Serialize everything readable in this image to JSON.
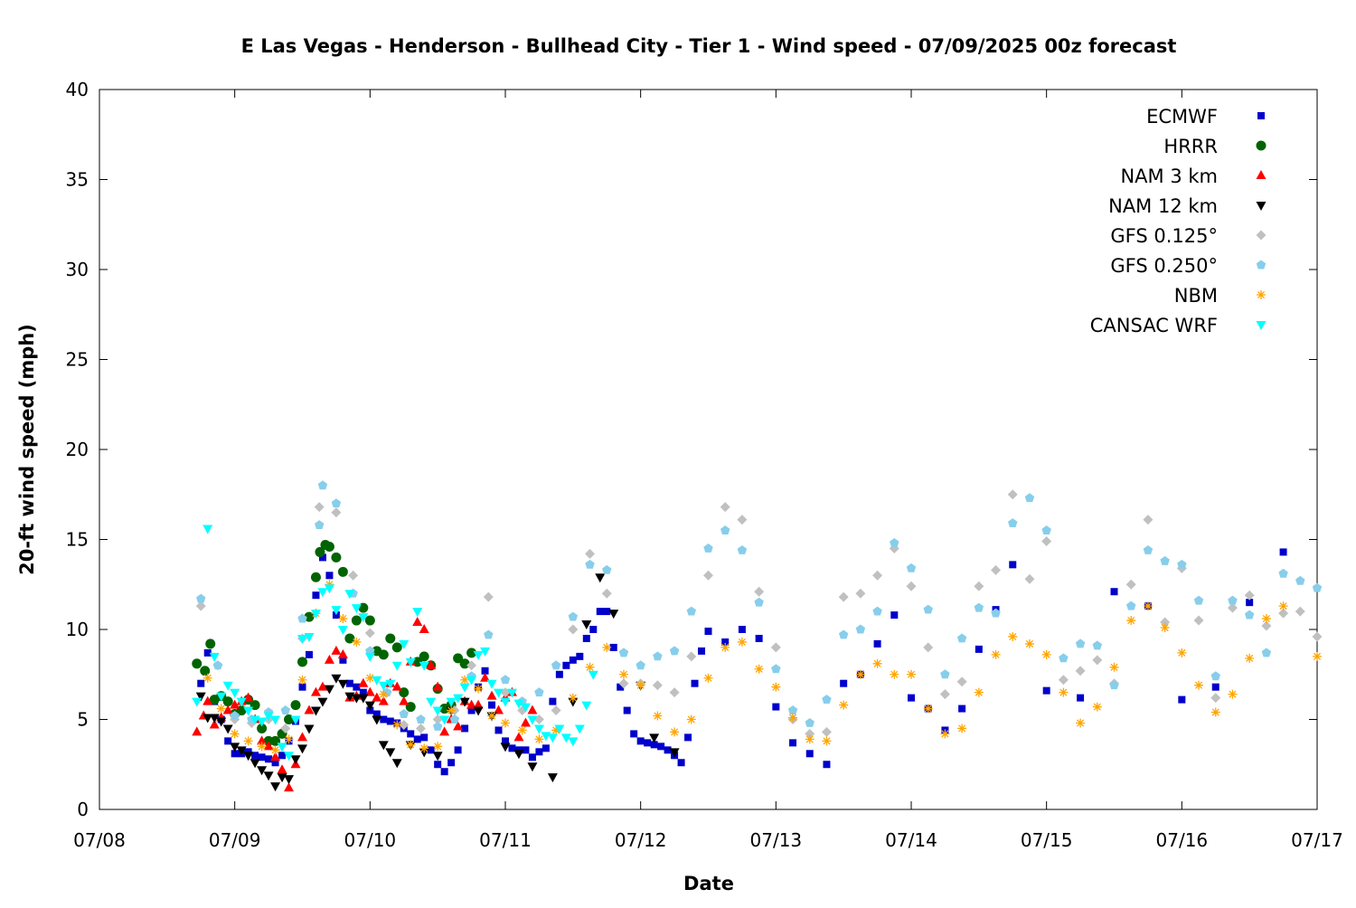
{
  "chart_data": {
    "type": "scatter",
    "title": "E Las Vegas - Henderson - Bullhead City - Tier 1 - Wind speed - 07/09/2025 00z forecast",
    "x_label": "Date",
    "y_label": "20-ft wind speed (mph)",
    "xlim": [
      8,
      17
    ],
    "xticks": [
      {
        "value": 8,
        "label": "07/08"
      },
      {
        "value": 9,
        "label": "07/09"
      },
      {
        "value": 10,
        "label": "07/10"
      },
      {
        "value": 11,
        "label": "07/11"
      },
      {
        "value": 12,
        "label": "07/12"
      },
      {
        "value": 13,
        "label": "07/13"
      },
      {
        "value": 14,
        "label": "07/14"
      },
      {
        "value": 15,
        "label": "07/15"
      },
      {
        "value": 16,
        "label": "07/16"
      },
      {
        "value": 17,
        "label": "07/17"
      }
    ],
    "ylim": [
      0,
      40
    ],
    "yticks": [
      0,
      5,
      10,
      15,
      20,
      25,
      30,
      35,
      40
    ],
    "grid": false,
    "legend": "top-right",
    "series": [
      {
        "name": "ECMWF",
        "color": "#0000cc",
        "marker": "square",
        "x": [
          8.75,
          8.8,
          8.85,
          8.9,
          8.95,
          9.0,
          9.05,
          9.1,
          9.15,
          9.2,
          9.25,
          9.3,
          9.35,
          9.4,
          9.45,
          9.5,
          9.55,
          9.6,
          9.65,
          9.7,
          9.75,
          9.8,
          9.85,
          9.9,
          9.95,
          10.0,
          10.05,
          10.1,
          10.15,
          10.2,
          10.25,
          10.3,
          10.35,
          10.4,
          10.45,
          10.5,
          10.55,
          10.6,
          10.65,
          10.7,
          10.75,
          10.8,
          10.85,
          10.9,
          10.95,
          11.0,
          11.05,
          11.1,
          11.15,
          11.2,
          11.25,
          11.3,
          11.35,
          11.4,
          11.45,
          11.5,
          11.55,
          11.6,
          11.65,
          11.7,
          11.75,
          11.8,
          11.85,
          11.9,
          11.95,
          12.0,
          12.05,
          12.1,
          12.15,
          12.2,
          12.25,
          12.3,
          12.35,
          12.4,
          12.45,
          12.5,
          12.625,
          12.75,
          12.875,
          13.0,
          13.125,
          13.25,
          13.375,
          13.5,
          13.625,
          13.75,
          13.875,
          14.0,
          14.125,
          14.25,
          14.375,
          14.5,
          14.625,
          14.75,
          15.0,
          15.25,
          15.5,
          15.75,
          16.0,
          16.25,
          16.5,
          16.75
        ],
        "values": [
          7.0,
          8.7,
          6.0,
          5.0,
          3.8,
          3.1,
          3.1,
          3.2,
          3.0,
          2.9,
          2.8,
          2.6,
          3.0,
          3.8,
          4.9,
          6.8,
          8.6,
          11.9,
          14.0,
          13.0,
          10.8,
          8.3,
          7.0,
          6.8,
          6.5,
          5.5,
          5.3,
          5.0,
          4.9,
          4.8,
          4.5,
          4.2,
          3.9,
          4.0,
          3.3,
          2.5,
          2.1,
          2.6,
          3.3,
          4.5,
          5.5,
          6.8,
          7.7,
          5.8,
          4.4,
          3.8,
          3.4,
          3.3,
          3.3,
          2.9,
          3.2,
          3.4,
          6.0,
          7.5,
          8.0,
          8.3,
          8.5,
          9.5,
          10.0,
          11.0,
          11.0,
          9.0,
          6.8,
          5.5,
          4.2,
          3.8,
          3.7,
          3.6,
          3.5,
          3.3,
          3.0,
          2.6,
          4.0,
          7.0,
          8.8,
          9.9,
          9.3,
          10.0,
          9.5,
          5.7,
          3.7,
          3.1,
          2.5,
          7.0,
          7.5,
          9.2,
          10.8,
          6.2,
          5.6,
          4.4,
          5.6,
          8.9,
          11.1,
          13.6,
          6.6,
          6.2,
          12.1,
          11.3,
          6.1,
          6.8,
          11.5,
          14.3
        ]
      },
      {
        "name": "HRRR",
        "color": "#006400",
        "marker": "circle",
        "x": [
          8.72,
          8.78,
          8.82,
          8.85,
          8.9,
          8.95,
          9.0,
          9.05,
          9.1,
          9.15,
          9.2,
          9.25,
          9.3,
          9.35,
          9.4,
          9.45,
          9.5,
          9.55,
          9.6,
          9.63,
          9.67,
          9.7,
          9.75,
          9.8,
          9.85,
          9.9,
          9.95,
          10.0,
          10.05,
          10.1,
          10.15,
          10.2,
          10.25,
          10.3,
          10.35,
          10.4,
          10.45,
          10.5,
          10.55,
          10.6,
          10.65,
          10.7,
          10.75
        ],
        "values": [
          8.1,
          7.7,
          9.2,
          6.1,
          6.3,
          6.0,
          5.3,
          5.5,
          6.1,
          5.8,
          4.5,
          3.8,
          3.8,
          4.2,
          5.0,
          5.8,
          8.2,
          10.7,
          12.9,
          14.3,
          14.7,
          14.6,
          14.0,
          13.2,
          9.5,
          10.5,
          11.2,
          10.5,
          8.8,
          8.6,
          9.5,
          9.0,
          6.5,
          5.7,
          8.2,
          8.5,
          8.0,
          6.7,
          5.6,
          5.8,
          8.4,
          8.1,
          8.7
        ]
      },
      {
        "name": "NAM 3 km",
        "color": "#ff0000",
        "marker": "triangle-up",
        "x": [
          8.72,
          8.77,
          8.8,
          8.85,
          8.9,
          8.95,
          9.0,
          9.05,
          9.1,
          9.15,
          9.2,
          9.25,
          9.3,
          9.35,
          9.4,
          9.45,
          9.5,
          9.55,
          9.6,
          9.65,
          9.7,
          9.75,
          9.8,
          9.85,
          9.9,
          9.95,
          10.0,
          10.05,
          10.1,
          10.15,
          10.2,
          10.25,
          10.3,
          10.35,
          10.4,
          10.45,
          10.5,
          10.55,
          10.6,
          10.65,
          10.7,
          10.75,
          10.8,
          10.85,
          10.9,
          10.95,
          11.0,
          11.05,
          11.1,
          11.15,
          11.2
        ],
        "values": [
          4.3,
          5.2,
          6.0,
          4.7,
          5.1,
          5.5,
          5.8,
          6.0,
          6.2,
          5.0,
          3.8,
          3.5,
          2.9,
          2.2,
          1.2,
          2.5,
          4.0,
          5.5,
          6.5,
          6.8,
          8.3,
          8.8,
          8.6,
          6.2,
          6.3,
          7.0,
          6.5,
          6.2,
          6.0,
          7.0,
          6.8,
          6.0,
          8.2,
          10.4,
          10.0,
          8.0,
          6.8,
          4.3,
          5.0,
          4.6,
          6.0,
          5.8,
          5.8,
          7.3,
          6.3,
          5.5,
          6.2,
          6.5,
          4.0,
          4.8,
          5.5
        ]
      },
      {
        "name": "NAM 12 km",
        "color": "#000000",
        "marker": "triangle-down",
        "x": [
          8.75,
          8.8,
          8.85,
          8.9,
          8.95,
          9.0,
          9.05,
          9.1,
          9.15,
          9.2,
          9.25,
          9.3,
          9.35,
          9.4,
          9.45,
          9.5,
          9.55,
          9.6,
          9.65,
          9.7,
          9.75,
          9.8,
          9.85,
          9.9,
          9.95,
          10.0,
          10.05,
          10.1,
          10.15,
          10.2,
          10.3,
          10.4,
          10.5,
          10.6,
          10.7,
          10.8,
          10.9,
          11.0,
          11.1,
          11.2,
          11.35,
          11.5,
          11.6,
          11.7,
          11.8,
          12.0,
          12.1,
          12.25
        ],
        "values": [
          6.3,
          5.1,
          5.1,
          4.9,
          4.5,
          3.5,
          3.3,
          3.0,
          2.6,
          2.2,
          1.9,
          1.3,
          1.8,
          1.7,
          2.8,
          3.4,
          4.5,
          5.5,
          6.0,
          6.7,
          7.3,
          7.0,
          6.3,
          6.2,
          6.2,
          5.8,
          5.0,
          3.6,
          3.2,
          2.6,
          3.6,
          3.2,
          3.0,
          5.5,
          6.0,
          5.5,
          5.2,
          3.5,
          3.1,
          2.4,
          1.8,
          6.0,
          10.3,
          12.9,
          10.9,
          6.9,
          4.0,
          3.2
        ]
      },
      {
        "name": "GFS 0.125°",
        "color": "#c0c0c0",
        "marker": "diamond",
        "x": [
          8.75,
          8.875,
          9.0,
          9.125,
          9.25,
          9.375,
          9.5,
          9.625,
          9.75,
          9.875,
          10.0,
          10.125,
          10.25,
          10.375,
          10.5,
          10.625,
          10.75,
          10.875,
          11.0,
          11.125,
          11.25,
          11.375,
          11.5,
          11.625,
          11.75,
          11.875,
          12.0,
          12.125,
          12.25,
          12.375,
          12.5,
          12.625,
          12.75,
          12.875,
          13.0,
          13.125,
          13.25,
          13.375,
          13.5,
          13.625,
          13.75,
          13.875,
          14.0,
          14.125,
          14.25,
          14.375,
          14.5,
          14.625,
          14.75,
          14.875,
          15.0,
          15.125,
          15.25,
          15.375,
          15.5,
          15.625,
          15.75,
          15.875,
          16.0,
          16.125,
          16.25,
          16.375,
          16.5,
          16.625,
          16.75,
          16.875,
          17.0
        ],
        "values": [
          11.3,
          8.0,
          5.0,
          4.8,
          5.0,
          4.5,
          9.5,
          16.8,
          16.5,
          13.0,
          9.8,
          6.5,
          4.7,
          4.5,
          5.0,
          5.5,
          8.0,
          11.8,
          6.5,
          5.5,
          5.0,
          5.5,
          10.0,
          14.2,
          12.0,
          7.0,
          7.0,
          6.9,
          6.5,
          8.5,
          13.0,
          16.8,
          16.1,
          12.1,
          9.0,
          5.0,
          4.2,
          4.3,
          11.8,
          12.0,
          13.0,
          14.5,
          12.4,
          9.0,
          6.4,
          7.1,
          12.4,
          13.3,
          17.5,
          12.8,
          14.9,
          7.2,
          7.7,
          8.3,
          7.0,
          12.5,
          16.1,
          10.4,
          13.4,
          10.5,
          6.2,
          11.2,
          11.9,
          10.2,
          10.9,
          11.0,
          9.6
        ]
      },
      {
        "name": "GFS 0.250°",
        "color": "#87ceeb",
        "marker": "pentagon",
        "x": [
          8.75,
          8.875,
          9.0,
          9.125,
          9.25,
          9.375,
          9.5,
          9.625,
          9.65,
          9.75,
          9.875,
          10.0,
          10.125,
          10.25,
          10.375,
          10.5,
          10.625,
          10.75,
          10.875,
          11.0,
          11.125,
          11.25,
          11.375,
          11.5,
          11.625,
          11.75,
          11.875,
          12.0,
          12.125,
          12.25,
          12.375,
          12.5,
          12.625,
          12.75,
          12.875,
          13.0,
          13.125,
          13.25,
          13.375,
          13.5,
          13.625,
          13.75,
          13.875,
          14.0,
          14.125,
          14.25,
          14.375,
          14.5,
          14.625,
          14.75,
          14.875,
          15.0,
          15.125,
          15.25,
          15.375,
          15.5,
          15.625,
          15.75,
          15.875,
          16.0,
          16.125,
          16.25,
          16.375,
          16.5,
          16.625,
          16.75,
          16.875,
          17.0
        ],
        "values": [
          11.7,
          8.0,
          5.2,
          5.0,
          5.4,
          5.5,
          10.6,
          15.8,
          18.0,
          17.0,
          12.0,
          8.8,
          6.5,
          5.3,
          5.0,
          4.6,
          5.0,
          7.4,
          9.7,
          7.2,
          6.0,
          6.5,
          8.0,
          10.7,
          13.6,
          13.3,
          8.7,
          8.0,
          8.5,
          8.8,
          11.0,
          14.5,
          15.5,
          14.4,
          11.5,
          7.8,
          5.5,
          4.8,
          6.1,
          9.7,
          10.0,
          11.0,
          14.8,
          13.4,
          11.1,
          7.5,
          9.5,
          11.2,
          10.9,
          15.9,
          17.3,
          15.5,
          8.4,
          9.2,
          9.1,
          6.9,
          11.3,
          14.4,
          13.8,
          13.6,
          11.6,
          7.4,
          11.6,
          10.8,
          8.7,
          13.1,
          12.7,
          12.3
        ]
      },
      {
        "name": "NBM",
        "color": "#ffa500",
        "marker": "asterisk",
        "x": [
          8.8,
          8.9,
          9.0,
          9.1,
          9.2,
          9.3,
          9.4,
          9.5,
          9.6,
          9.7,
          9.8,
          9.9,
          10.0,
          10.1,
          10.2,
          10.3,
          10.4,
          10.5,
          10.6,
          10.7,
          10.8,
          10.9,
          11.0,
          11.125,
          11.25,
          11.375,
          11.5,
          11.625,
          11.75,
          11.875,
          12.0,
          12.125,
          12.25,
          12.375,
          12.5,
          12.625,
          12.75,
          12.875,
          13.0,
          13.125,
          13.25,
          13.375,
          13.5,
          13.625,
          13.75,
          13.875,
          14.0,
          14.125,
          14.25,
          14.375,
          14.5,
          14.625,
          14.75,
          14.875,
          15.0,
          15.125,
          15.25,
          15.375,
          15.5,
          15.625,
          15.75,
          15.875,
          16.0,
          16.125,
          16.25,
          16.375,
          16.5,
          16.625,
          16.75,
          17.0
        ],
        "values": [
          7.3,
          5.6,
          4.2,
          3.8,
          3.5,
          3.3,
          3.9,
          7.2,
          10.9,
          12.5,
          10.6,
          9.3,
          7.3,
          6.4,
          4.7,
          3.6,
          3.4,
          3.5,
          5.5,
          7.2,
          6.7,
          5.2,
          4.8,
          4.4,
          3.9,
          4.4,
          6.2,
          7.9,
          9.0,
          7.5,
          6.9,
          5.2,
          4.3,
          5.0,
          7.3,
          9.0,
          9.3,
          7.8,
          6.8,
          5.1,
          3.9,
          3.8,
          5.8,
          7.5,
          8.1,
          7.5,
          7.5,
          5.6,
          4.2,
          4.5,
          6.5,
          8.6,
          9.6,
          9.2,
          8.6,
          6.5,
          4.8,
          5.7,
          7.9,
          10.5,
          11.3,
          10.1,
          8.7,
          6.9,
          5.4,
          6.4,
          8.4,
          10.6,
          11.3,
          8.5
        ]
      },
      {
        "name": "CANSAC WRF",
        "color": "#00ffff",
        "marker": "triangle-down",
        "x": [
          8.72,
          8.8,
          8.85,
          8.9,
          8.95,
          9.0,
          9.05,
          9.1,
          9.15,
          9.2,
          9.25,
          9.3,
          9.35,
          9.4,
          9.45,
          9.5,
          9.55,
          9.6,
          9.65,
          9.7,
          9.75,
          9.8,
          9.85,
          9.9,
          9.95,
          10.0,
          10.05,
          10.1,
          10.15,
          10.2,
          10.25,
          10.3,
          10.35,
          10.4,
          10.45,
          10.5,
          10.55,
          10.6,
          10.65,
          10.7,
          10.75,
          10.8,
          10.85,
          10.9,
          10.95,
          11.0,
          11.05,
          11.1,
          11.15,
          11.2,
          11.25,
          11.3,
          11.35,
          11.4,
          11.45,
          11.5,
          11.55,
          11.6,
          11.65
        ],
        "values": [
          6.0,
          15.6,
          8.5,
          6.3,
          6.9,
          6.5,
          6.0,
          5.5,
          5.0,
          4.9,
          5.2,
          5.0,
          3.5,
          3.0,
          5.0,
          9.5,
          9.6,
          10.9,
          12.1,
          12.3,
          11.1,
          10.0,
          12.0,
          11.2,
          10.7,
          8.5,
          7.2,
          6.9,
          7.0,
          8.0,
          9.2,
          8.2,
          11.0,
          8.0,
          6.0,
          5.5,
          5.0,
          6.0,
          6.2,
          6.8,
          7.2,
          8.6,
          8.8,
          7.0,
          6.5,
          6.0,
          6.5,
          5.9,
          5.7,
          5.0,
          4.5,
          4.1,
          4.0,
          4.5,
          4.0,
          3.8,
          4.5,
          5.8,
          7.5
        ]
      }
    ]
  }
}
